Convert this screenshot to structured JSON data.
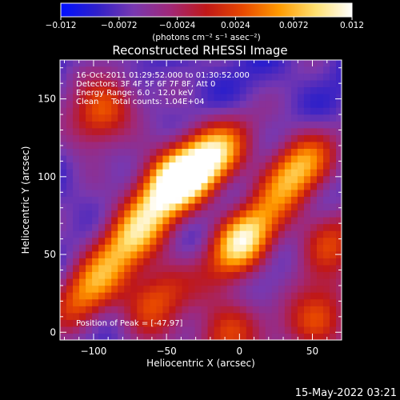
{
  "chart_data": {
    "type": "heatmap",
    "title": "Reconstructed RHESSI Image",
    "xlabel": "Heliocentric X (arcsec)",
    "ylabel": "Heliocentric Y (arcsec)",
    "xlim": [
      -123,
      70
    ],
    "ylim": [
      -5,
      175
    ],
    "x_ticks": [
      -100,
      -50,
      0,
      50
    ],
    "x_tick_labels": [
      "−100",
      "−50",
      "0",
      "50"
    ],
    "y_ticks": [
      0,
      50,
      100,
      150
    ],
    "y_tick_labels": [
      "0",
      "50",
      "100",
      "150"
    ],
    "colorbar": {
      "range": [
        -0.012,
        0.012
      ],
      "ticks": [
        -0.012,
        -0.0072,
        -0.0024,
        0.0024,
        0.0072,
        0.012
      ],
      "tick_labels": [
        "−0.012",
        "−0.0072",
        "−0.0024",
        "0.0024",
        "0.0072",
        "0.012"
      ],
      "unit_label": "(photons cm⁻² s⁻¹ asec⁻²)",
      "colors": [
        "#0010ff",
        "#3020c8",
        "#7838b0",
        "#a02878",
        "#c01818",
        "#e84800",
        "#ff9a00",
        "#ffe070",
        "#ffffff"
      ]
    },
    "info_lines": [
      "16-Oct-2011 01:29:52.000 to 01:30:52.000",
      "Detectors: 3F 4F 5F 6F 7F 8F, Att 0",
      "Energy Range: 6.0 - 12.0 keV",
      "Clean     Total counts: 1.04E+04"
    ],
    "peak_label": "Position of Peak = [-47,97]",
    "peak": [
      -47,
      97
    ],
    "sources": [
      {
        "x": -47,
        "y": 97,
        "value": 0.012
      },
      {
        "x": 2,
        "y": 60,
        "value": 0.0095
      },
      {
        "x": -20,
        "y": 112,
        "value": 0.008
      },
      {
        "x": 38,
        "y": 105,
        "value": 0.0075
      },
      {
        "x": -75,
        "y": 62,
        "value": 0.006
      },
      {
        "x": -105,
        "y": 28,
        "value": 0.004
      },
      {
        "x": -95,
        "y": 142,
        "value": 0.0045
      },
      {
        "x": -58,
        "y": 22,
        "value": 0.004
      },
      {
        "x": 55,
        "y": 8,
        "value": 0.0035
      },
      {
        "x": -10,
        "y": 0,
        "value": 0.003
      },
      {
        "x": 60,
        "y": 60,
        "value": 0.0015
      }
    ],
    "grid": false,
    "legend": "none"
  },
  "timestamp": "15-May-2022 03:21"
}
